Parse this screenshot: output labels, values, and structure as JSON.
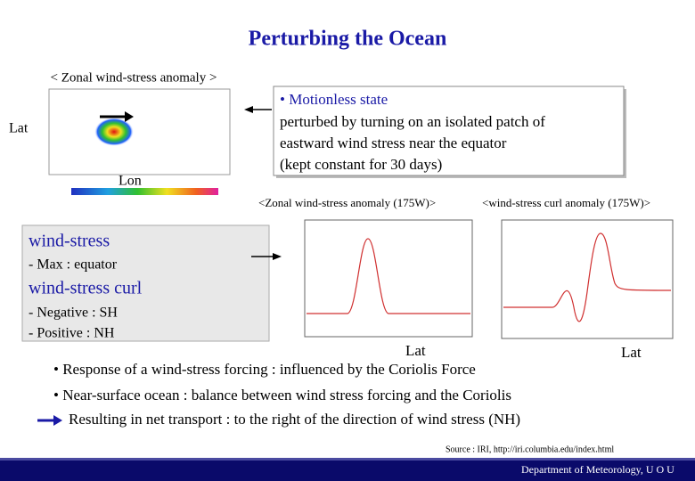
{
  "header": {
    "title": "Perturbing the Ocean"
  },
  "map_panel": {
    "caption": "< Zonal wind-stress anomaly >",
    "y_label": "Lat",
    "x_label": "Lon"
  },
  "info_box": {
    "heading": "• Motionless state",
    "lines": [
      "perturbed by turning on an isolated patch of",
      "eastward wind stress near the equator",
      "(kept constant for 30 days)"
    ]
  },
  "plots": [
    {
      "caption": "<Zonal wind-stress anomaly (175W)>",
      "x_label": "Lat"
    },
    {
      "caption": "<wind-stress curl anomaly (175W)>",
      "x_label": "Lat"
    }
  ],
  "summary_box": {
    "items": [
      {
        "heading": "wind-stress",
        "points": [
          "- Max : equator"
        ]
      },
      {
        "heading": "wind-stress curl",
        "points": [
          "- Negative : SH",
          "- Positive : NH"
        ]
      }
    ]
  },
  "bullets": [
    "• Response of a wind-stress forcing : influenced by the Coriolis Force",
    "• Near-surface ocean : balance between wind stress forcing and the Coriolis",
    "Resulting in net transport : to the right of the direction of wind stress (NH)"
  ],
  "source": "Source : IRI, http://iri.columbia.edu/index.html",
  "footer": "Department of Meteorology,  U O U"
}
